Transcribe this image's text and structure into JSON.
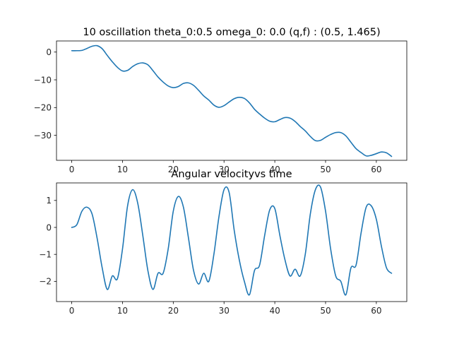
{
  "figure": {
    "background": "#ffffff",
    "line_color": "#1f77b4"
  },
  "chart_data": [
    {
      "type": "line",
      "title": "10 oscillation theta_0:0.5 omega_0: 0.0 (q,f) : (0.5, 1.465)",
      "xlabel": "",
      "ylabel": "",
      "xlim": [
        -3,
        66
      ],
      "ylim": [
        -39,
        4
      ],
      "xticks": [
        0,
        10,
        20,
        30,
        40,
        50,
        60
      ],
      "yticks": [
        0,
        -10,
        -20,
        -30
      ],
      "grid": false,
      "series": [
        {
          "x": [
            0,
            1,
            2,
            3,
            4,
            5,
            6,
            7,
            8,
            9,
            10,
            11,
            12,
            13,
            14,
            15,
            16,
            17,
            18,
            19,
            20,
            21,
            22,
            23,
            24,
            25,
            26,
            27,
            28,
            29,
            30,
            31,
            32,
            33,
            34,
            35,
            36,
            37,
            38,
            39,
            40,
            41,
            42,
            43,
            44,
            45,
            46,
            47,
            48,
            49,
            50,
            51,
            52,
            53,
            54,
            55,
            56,
            57,
            58,
            59,
            60,
            61,
            62,
            63
          ],
          "y": [
            0.5,
            0.5,
            0.6,
            1.3,
            2.1,
            2.3,
            1.2,
            -1.2,
            -3.5,
            -5.5,
            -6.8,
            -6.6,
            -5.2,
            -4.2,
            -3.9,
            -4.6,
            -6.7,
            -9.0,
            -10.8,
            -12.2,
            -12.8,
            -12.4,
            -11.3,
            -11.1,
            -12.0,
            -13.8,
            -15.8,
            -17.3,
            -19.1,
            -19.9,
            -19.3,
            -18.0,
            -16.8,
            -16.3,
            -16.7,
            -18.3,
            -20.6,
            -22.3,
            -23.8,
            -24.9,
            -25.1,
            -24.3,
            -23.6,
            -23.8,
            -25.0,
            -26.8,
            -28.4,
            -30.4,
            -31.9,
            -31.8,
            -30.7,
            -29.7,
            -29.0,
            -29.0,
            -30.2,
            -32.5,
            -34.8,
            -36.2,
            -37.4,
            -37.2,
            -36.6,
            -36.0,
            -36.3,
            -37.6
          ]
        }
      ]
    },
    {
      "type": "line",
      "title": "Angular velocityvs time",
      "xlabel": "",
      "ylabel": "",
      "xlim": [
        -3,
        66
      ],
      "ylim": [
        -2.75,
        1.65
      ],
      "xticks": [
        0,
        10,
        20,
        30,
        40,
        50,
        60
      ],
      "yticks": [
        1,
        0,
        -1,
        -2
      ],
      "grid": false,
      "series": [
        {
          "x": [
            0,
            1,
            2,
            3,
            4,
            5,
            6,
            7,
            8,
            9,
            10,
            11,
            12,
            13,
            14,
            15,
            16,
            17,
            18,
            19,
            20,
            21,
            22,
            23,
            24,
            25,
            26,
            27,
            28,
            29,
            30,
            31,
            32,
            33,
            34,
            35,
            36,
            37,
            38,
            39,
            40,
            41,
            42,
            43,
            44,
            45,
            46,
            47,
            48,
            49,
            50,
            51,
            52,
            53,
            54,
            55,
            56,
            57,
            58,
            59,
            60,
            61,
            62,
            63
          ],
          "y": [
            0.0,
            0.1,
            0.6,
            0.75,
            0.5,
            -0.4,
            -1.5,
            -2.3,
            -1.8,
            -1.9,
            -0.8,
            0.8,
            1.4,
            0.9,
            -0.3,
            -1.6,
            -2.3,
            -1.7,
            -1.7,
            -0.8,
            0.6,
            1.15,
            0.75,
            -0.4,
            -1.6,
            -2.1,
            -1.7,
            -2.0,
            -1.0,
            0.4,
            1.4,
            1.3,
            -0.1,
            -1.2,
            -2.0,
            -2.5,
            -1.6,
            -1.4,
            -0.3,
            0.65,
            0.7,
            -0.3,
            -1.2,
            -1.8,
            -1.55,
            -1.8,
            -1.0,
            0.5,
            1.4,
            1.5,
            0.6,
            -0.8,
            -1.8,
            -2.0,
            -2.5,
            -1.5,
            -1.4,
            -0.2,
            0.75,
            0.8,
            0.3,
            -0.7,
            -1.5,
            -1.7
          ]
        }
      ]
    }
  ]
}
